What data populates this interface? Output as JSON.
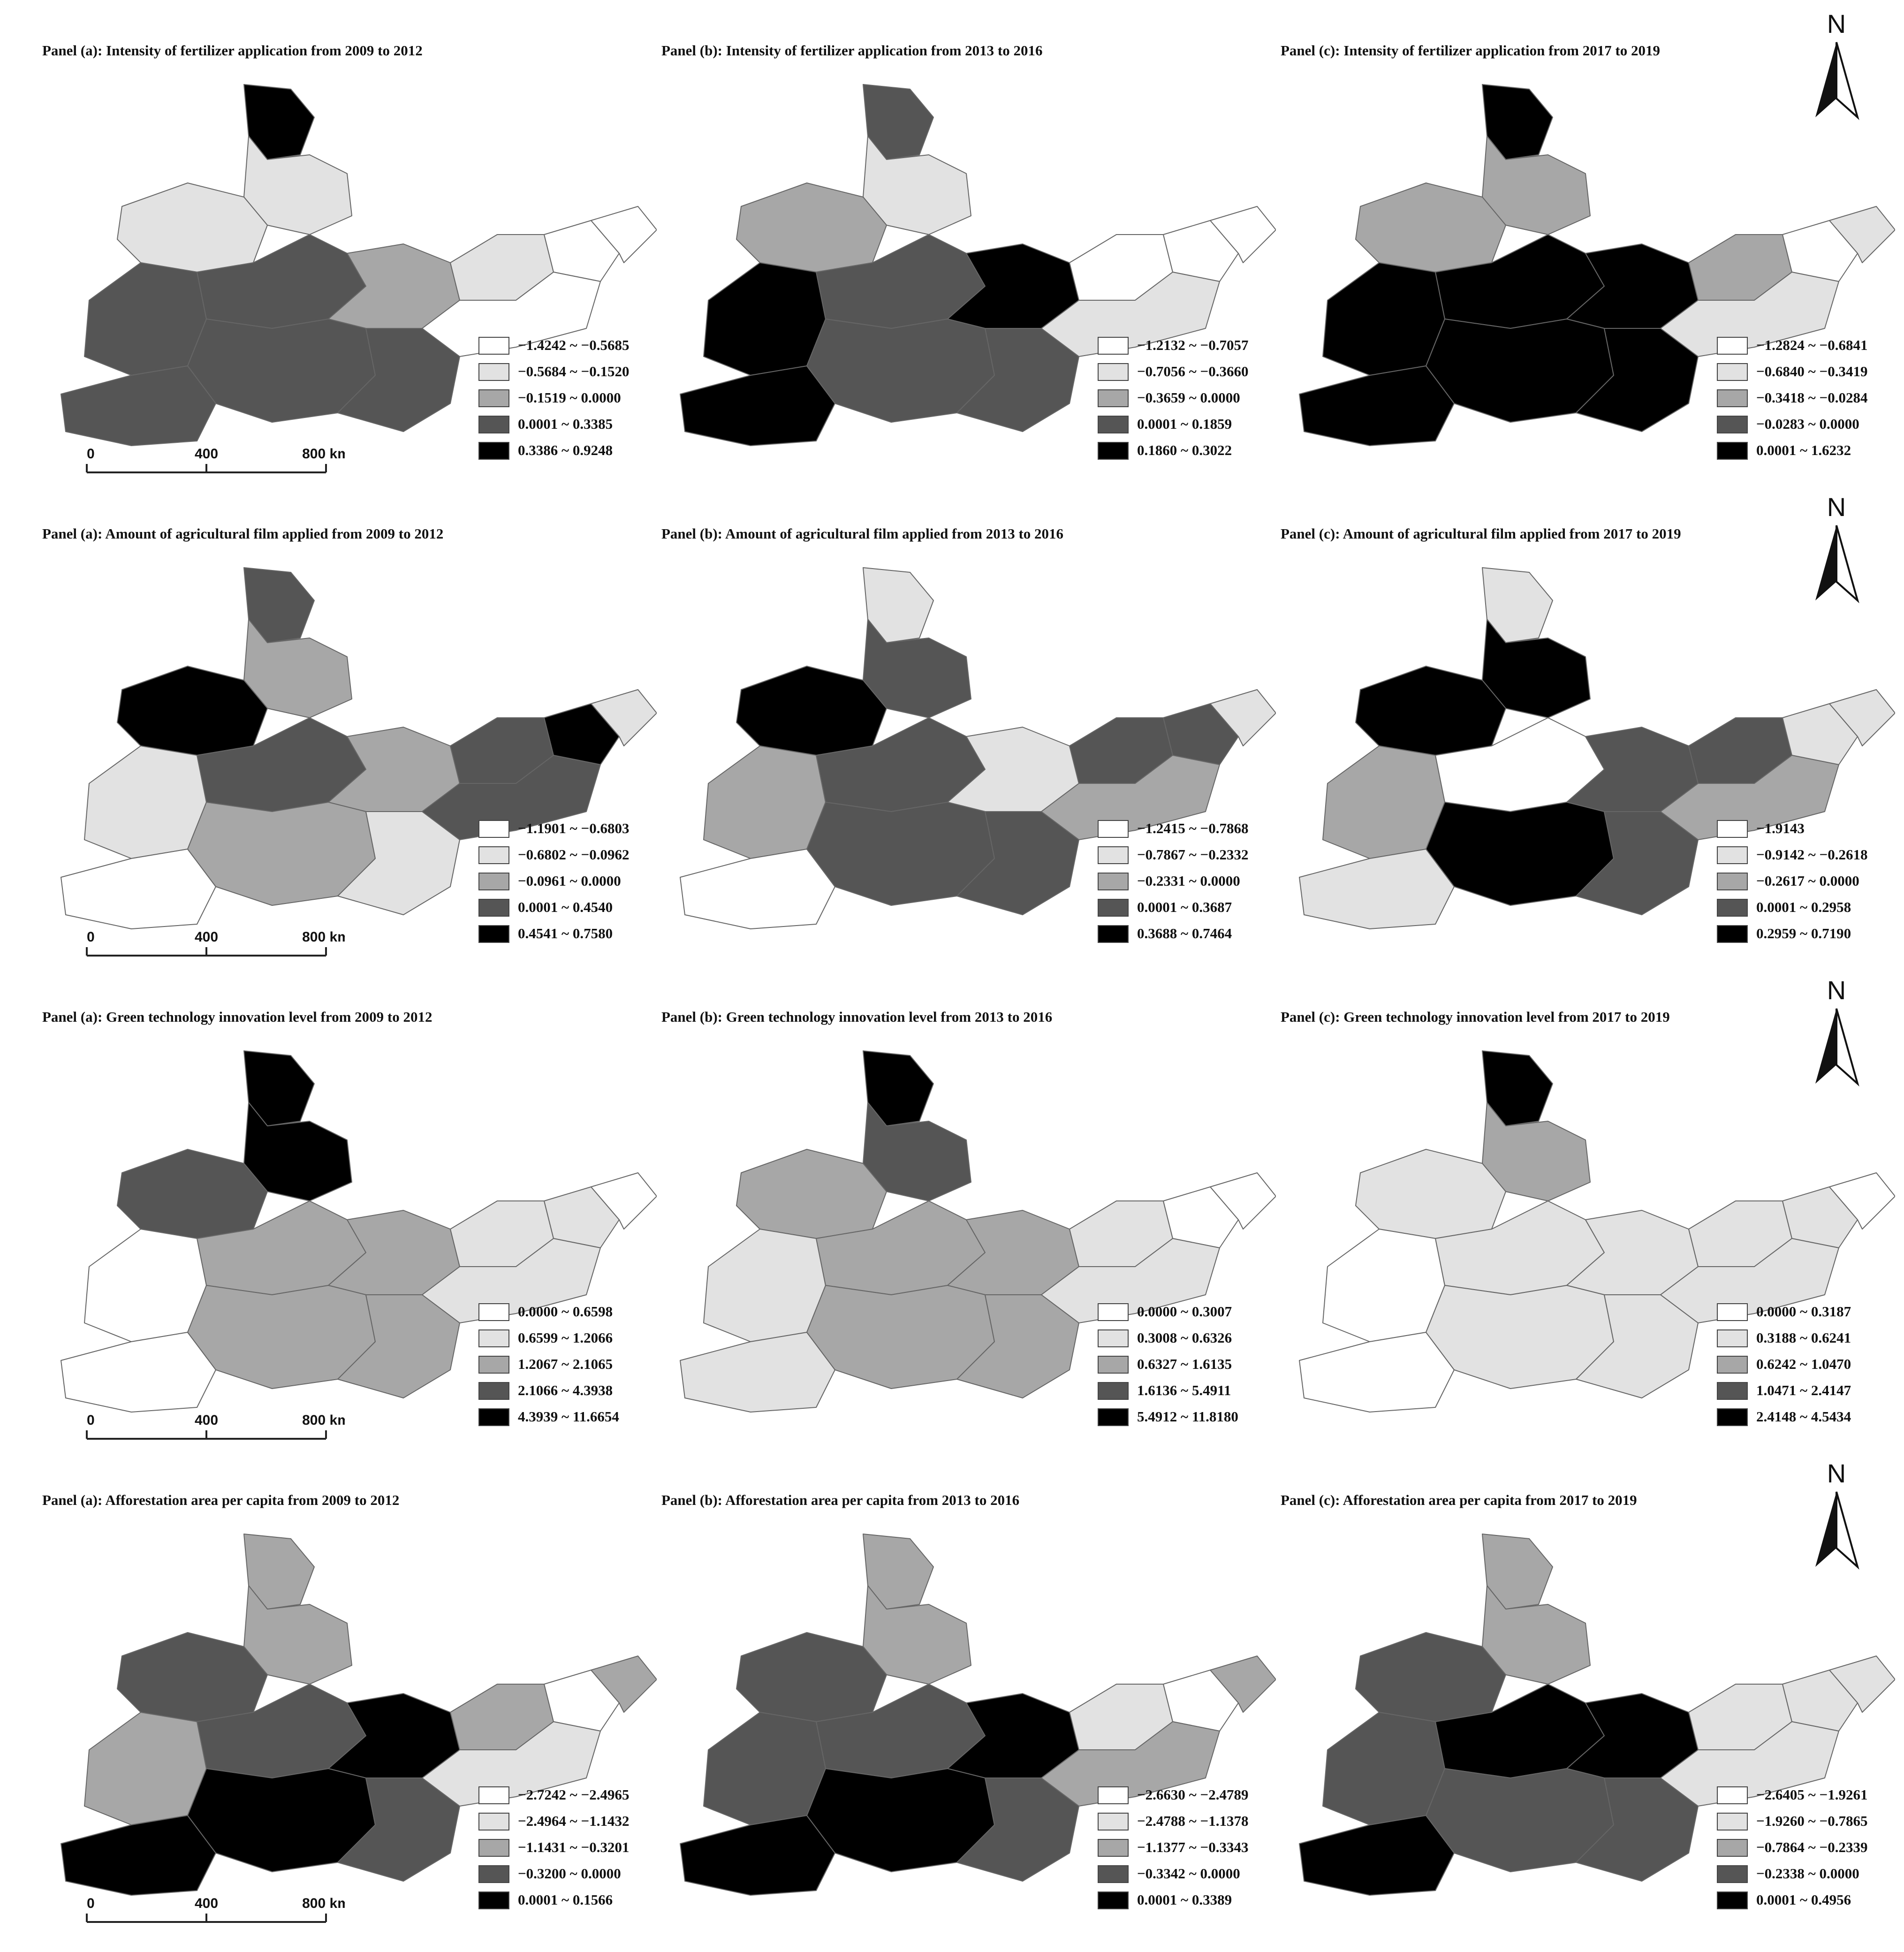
{
  "scale_bar": {
    "ticks": [
      "0",
      "400",
      "800 km"
    ]
  },
  "north_arrow": {
    "label": "N",
    "icon": "north-arrow-icon"
  },
  "class_colors": [
    "#ffffff",
    "#e2e2e2",
    "#a7a7a7",
    "#555555",
    "#000000"
  ],
  "rows": [
    {
      "indicator": "fertilizer",
      "panels": [
        {
          "title": "Panel (a): Intensity of fertilizer application from 2009 to 2012",
          "legend": [
            "−1.4242 ~ −0.5685",
            "−0.5684 ~ −0.1520",
            "−0.1519 ~ 0.0000",
            "0.0001 ~ 0.3385",
            "0.3386 ~ 0.9248"
          ]
        },
        {
          "title": "Panel (b): Intensity of fertilizer application from 2013 to 2016",
          "legend": [
            "−1.2132 ~ −0.7057",
            "−0.7056 ~ −0.3660",
            "−0.3659 ~ 0.0000",
            "0.0001 ~ 0.1859",
            "0.1860 ~ 0.3022"
          ]
        },
        {
          "title": "Panel (c): Intensity of fertilizer application from 2017 to 2019",
          "legend": [
            "−1.2824 ~ −0.6841",
            "−0.6840 ~ −0.3419",
            "−0.3418 ~ −0.0284",
            "−0.0283 ~ 0.0000",
            "0.0001 ~ 1.6232"
          ]
        }
      ]
    },
    {
      "indicator": "agricultural-film",
      "panels": [
        {
          "title": "Panel (a): Amount of agricultural film applied from 2009 to 2012",
          "legend": [
            "−1.1901 ~ −0.6803",
            "−0.6802 ~ −0.0962",
            "−0.0961 ~ 0.0000",
            "0.0001 ~ 0.4540",
            "0.4541 ~ 0.7580"
          ]
        },
        {
          "title": "Panel (b): Amount of agricultural film applied from 2013 to 2016",
          "legend": [
            "−1.2415 ~ −0.7868",
            "−0.7867 ~ −0.2332",
            "−0.2331 ~ 0.0000",
            "0.0001 ~ 0.3687",
            "0.3688 ~ 0.7464"
          ]
        },
        {
          "title": "Panel (c): Amount of agricultural film applied from 2017 to 2019",
          "legend": [
            "−1.9143",
            "−0.9142 ~ −0.2618",
            "−0.2617 ~ 0.0000",
            "0.0001 ~ 0.2958",
            "0.2959 ~ 0.7190"
          ]
        }
      ]
    },
    {
      "indicator": "green-technology",
      "panels": [
        {
          "title": "Panel (a): Green technology innovation level from 2009 to 2012",
          "legend": [
            "0.0000 ~ 0.6598",
            "0.6599 ~ 1.2066",
            "1.2067 ~ 2.1065",
            "2.1066 ~ 4.3938",
            "4.3939 ~ 11.6654"
          ]
        },
        {
          "title": "Panel (b): Green technology innovation level from 2013 to 2016",
          "legend": [
            "0.0000 ~ 0.3007",
            "0.3008 ~ 0.6326",
            "0.6327 ~ 1.6135",
            "1.6136 ~ 5.4911",
            "5.4912 ~ 11.8180"
          ]
        },
        {
          "title": "Panel (c): Green technology innovation level from 2017 to 2019",
          "legend": [
            "0.0000 ~ 0.3187",
            "0.3188 ~ 0.6241",
            "0.6242 ~ 1.0470",
            "1.0471 ~ 2.4147",
            "2.4148 ~ 4.5434"
          ]
        }
      ]
    },
    {
      "indicator": "afforestation",
      "panels": [
        {
          "title": "Panel (a): Afforestation area per capita from 2009 to 2012",
          "legend": [
            "−2.7242 ~ −2.4965",
            "−2.4964 ~ −1.1432",
            "−1.1431 ~ −0.3201",
            "−0.3200 ~ 0.0000",
            "0.0001 ~ 0.1566"
          ]
        },
        {
          "title": "Panel (b): Afforestation area per capita from 2013 to 2016",
          "legend": [
            "−2.6630 ~ −2.4789",
            "−2.4788 ~ −1.1378",
            "−1.1377 ~ −0.3343",
            "−0.3342 ~ 0.0000",
            "0.0001 ~ 0.3389"
          ]
        },
        {
          "title": "Panel (c): Afforestation area per capita from 2017 to 2019",
          "legend": [
            "−2.6405 ~ −1.9261",
            "−1.9260 ~ −0.7865",
            "−0.7864 ~ −0.2339",
            "−0.2338 ~ 0.0000",
            "0.0001 ~ 0.4956"
          ]
        }
      ]
    }
  ]
}
